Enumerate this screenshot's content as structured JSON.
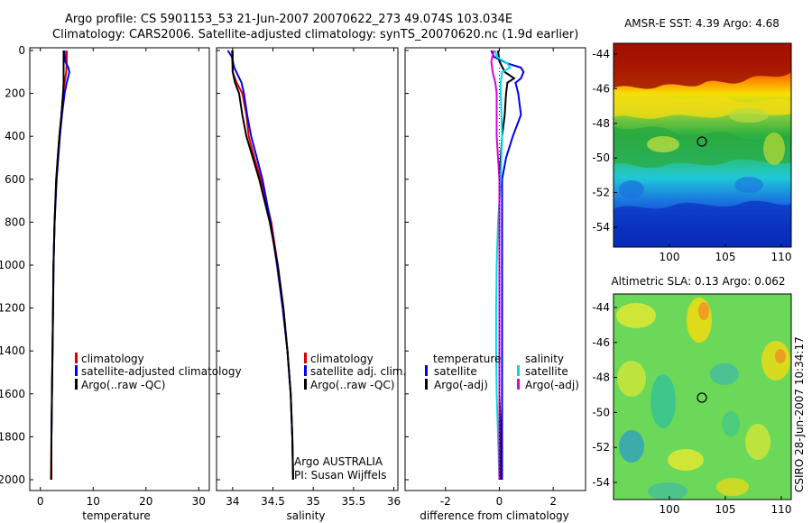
{
  "header": {
    "line1": "Argo profile: CS 5901153_53 21-Jun-2007 20070622_273 49.074S 103.034E",
    "line2": "Climatology: CARS2006. Satellite-adjusted climatology: synTS_20070620.nc (1.9d earlier)"
  },
  "chart_data": [
    {
      "type": "line",
      "xlabel": "temperature",
      "ylabel": "",
      "xlim": [
        -2,
        32
      ],
      "ylim": [
        2050,
        0
      ],
      "x_ticks": [
        "0",
        "10",
        "20",
        "30"
      ],
      "y_ticks": [
        "0",
        "200",
        "400",
        "600",
        "800",
        "1000",
        "1200",
        "1400",
        "1600",
        "1800",
        "2000"
      ],
      "legend": [
        "climatology",
        "satellite-adjusted climatology",
        "Argo(..raw -QC)"
      ],
      "series": [
        {
          "name": "climatology",
          "color": "#dd0000",
          "depth": [
            0,
            50,
            100,
            150,
            200,
            300,
            400,
            500,
            600,
            800,
            1000,
            1200,
            1400,
            1600,
            1800,
            2000
          ],
          "values": [
            5.0,
            5.0,
            4.9,
            4.6,
            4.3,
            4.0,
            3.6,
            3.3,
            3.0,
            2.7,
            2.5,
            2.4,
            2.3,
            2.2,
            2.1,
            2.0
          ]
        },
        {
          "name": "satellite-adjusted climatology",
          "color": "#0000ee",
          "depth": [
            0,
            50,
            80,
            100,
            150,
            200,
            300,
            400,
            500,
            600,
            800,
            1000,
            1200,
            1400,
            1600,
            1800,
            2000
          ],
          "values": [
            4.6,
            4.7,
            5.3,
            5.5,
            5.0,
            4.6,
            4.1,
            3.7,
            3.4,
            3.1,
            2.7,
            2.5,
            2.4,
            2.3,
            2.2,
            2.1,
            2.1
          ]
        },
        {
          "name": "Argo(..raw -QC)",
          "color": "#000000",
          "depth": [
            0,
            50,
            100,
            150,
            200,
            300,
            400,
            500,
            600,
            800,
            1000,
            1200,
            1400,
            1600,
            1800,
            2000
          ],
          "values": [
            4.4,
            4.4,
            4.4,
            4.4,
            4.3,
            4.0,
            3.6,
            3.3,
            3.0,
            2.7,
            2.5,
            2.4,
            2.3,
            2.2,
            2.1,
            2.1
          ]
        }
      ]
    },
    {
      "type": "line",
      "xlabel": "salinity",
      "xlim": [
        33.8,
        36.05
      ],
      "ylim": [
        2050,
        0
      ],
      "x_ticks": [
        "34",
        "34.5",
        "35",
        "35.5",
        "36"
      ],
      "legend": [
        "climatology",
        "satellite adj. clim.",
        "Argo(..raw -QC)"
      ],
      "annotation": [
        "Argo AUSTRALIA",
        "PI: Susan Wijffels"
      ],
      "series": [
        {
          "name": "climatology",
          "color": "#dd0000",
          "depth": [
            0,
            100,
            150,
            200,
            300,
            400,
            500,
            600,
            800,
            1000,
            1200,
            1400,
            1600,
            1800,
            2000
          ],
          "values": [
            33.99,
            34.0,
            34.05,
            34.12,
            34.17,
            34.2,
            34.27,
            34.35,
            34.48,
            34.56,
            34.63,
            34.68,
            34.72,
            34.74,
            34.75
          ]
        },
        {
          "name": "satellite adj. clim.",
          "color": "#0000ee",
          "depth": [
            0,
            30,
            80,
            150,
            200,
            300,
            400,
            500,
            600,
            800,
            1000,
            1200,
            1400,
            1600,
            1800,
            2000
          ],
          "values": [
            33.94,
            33.99,
            34.02,
            34.11,
            34.14,
            34.18,
            34.23,
            34.3,
            34.37,
            34.47,
            34.55,
            34.62,
            34.68,
            34.72,
            34.74,
            34.75
          ]
        },
        {
          "name": "Argo(..raw -QC)",
          "color": "#000000",
          "depth": [
            0,
            100,
            150,
            200,
            300,
            400,
            500,
            600,
            800,
            1000,
            1200,
            1400,
            1600,
            1800,
            2000
          ],
          "values": [
            34.0,
            34.0,
            34.03,
            34.08,
            34.12,
            34.17,
            34.25,
            34.33,
            34.46,
            34.56,
            34.63,
            34.68,
            34.72,
            34.74,
            34.75
          ]
        }
      ]
    },
    {
      "type": "line",
      "xlabel": "difference from climatology",
      "xlim": [
        -3.5,
        3.2
      ],
      "ylim": [
        2050,
        0
      ],
      "x_ticks": [
        "-2",
        "0",
        "2"
      ],
      "legend_left_title": "temperature",
      "legend_right_title": "salinity",
      "legend": [
        "satellite",
        "Argo(-adj)",
        "satellite",
        "Argo(-adj)"
      ],
      "series": [
        {
          "name": "temperature satellite",
          "color": "#0000ee",
          "depth": [
            0,
            30,
            60,
            80,
            100,
            130,
            150,
            200,
            300,
            400,
            500,
            600,
            800,
            1000,
            1200,
            1400,
            1600,
            1800,
            2000
          ],
          "values": [
            -0.3,
            -0.2,
            0.3,
            0.8,
            0.9,
            0.8,
            0.6,
            0.7,
            0.8,
            0.5,
            0.25,
            0.1,
            0.1,
            0.1,
            0.1,
            0.1,
            0.1,
            0.1,
            0.1
          ]
        },
        {
          "name": "temperature Argo(-adj)",
          "color": "#000000",
          "depth": [
            0,
            50,
            100,
            130,
            150,
            200,
            300,
            400,
            500,
            600,
            800,
            1000,
            1200,
            1400,
            1600,
            1800,
            2000
          ],
          "values": [
            -0.05,
            0.0,
            0.2,
            0.55,
            0.3,
            0.25,
            0.2,
            0.1,
            0.05,
            0.0,
            0.0,
            0.0,
            0.0,
            0.0,
            0.0,
            0.05,
            0.05
          ]
        },
        {
          "name": "salinity satellite",
          "color": "#00dddd",
          "depth": [
            0,
            30,
            60,
            80,
            100,
            150,
            200,
            400,
            600,
            800,
            1000,
            1200,
            1400,
            1600,
            1800,
            2000
          ],
          "values": [
            -0.15,
            -0.1,
            0.3,
            0.4,
            0.1,
            0.05,
            0.05,
            0.1,
            0.05,
            -0.05,
            -0.1,
            -0.12,
            -0.12,
            -0.1,
            -0.05,
            0.0
          ]
        },
        {
          "name": "salinity Argo(-adj)",
          "color": "#dd00dd",
          "depth": [
            0,
            50,
            100,
            150,
            200,
            300,
            400,
            500,
            600,
            800,
            1000,
            1200,
            1400,
            1600,
            1800,
            2000
          ],
          "values": [
            -0.2,
            -0.3,
            -0.25,
            -0.15,
            -0.1,
            -0.1,
            -0.1,
            -0.05,
            0.0,
            0.0,
            0.0,
            0.0,
            0.0,
            0.0,
            0.0,
            0.0
          ]
        }
      ]
    },
    {
      "type": "heatmap",
      "title": "AMSR-E SST: 4.39 Argo: 4.68",
      "x_ticks": [
        "100",
        "105",
        "110"
      ],
      "y_ticks": [
        "-44",
        "-46",
        "-48",
        "-50",
        "-52",
        "-54"
      ],
      "marker": {
        "lon": 103.0,
        "lat": -49.1
      }
    },
    {
      "type": "heatmap",
      "title": "Altimetric SLA: 0.13 Argo: 0.062",
      "x_ticks": [
        "100",
        "105",
        "110"
      ],
      "y_ticks": [
        "-44",
        "-46",
        "-48",
        "-50",
        "-52",
        "-54"
      ],
      "marker": {
        "lon": 103.0,
        "lat": -49.1
      }
    }
  ],
  "footer": {
    "stamp": "CSIRO 28-Jun-2007 10:34:17"
  }
}
